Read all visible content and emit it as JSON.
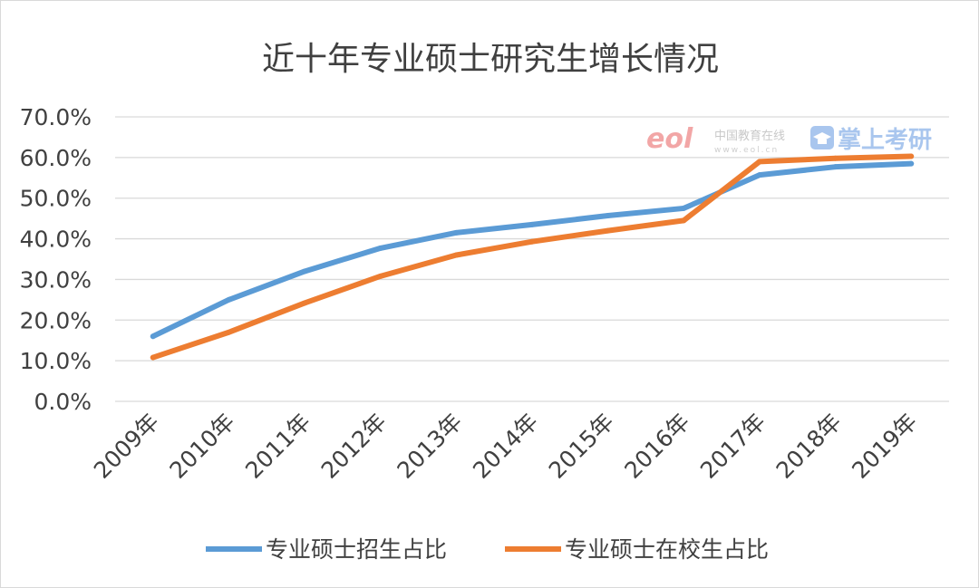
{
  "chart_data": {
    "type": "line",
    "title": "近十年专业硕士研究生增长情况",
    "categories": [
      "2009年",
      "2010年",
      "2011年",
      "2012年",
      "2013年",
      "2014年",
      "2015年",
      "2016年",
      "2017年",
      "2018年",
      "2019年"
    ],
    "ylim": [
      0,
      70
    ],
    "yticks": [
      "0.0%",
      "10.0%",
      "20.0%",
      "30.0%",
      "40.0%",
      "50.0%",
      "60.0%",
      "70.0%"
    ],
    "grid": true,
    "legend": "bottom",
    "series": [
      {
        "name": "专业硕士招生占比",
        "color": "#5b9bd5",
        "values": [
          16.0,
          25.0,
          32.0,
          37.7,
          41.5,
          43.5,
          45.7,
          47.5,
          55.7,
          57.7,
          58.5
        ]
      },
      {
        "name": "专业硕士在校生占比",
        "color": "#ed7d31",
        "values": [
          10.8,
          17.0,
          24.2,
          30.8,
          36.0,
          39.3,
          42.0,
          44.5,
          59.0,
          59.8,
          60.3
        ]
      }
    ]
  },
  "watermark": {
    "eol_logo": "eol",
    "site_name": "中国教育在线",
    "site_url": "www.eol.cn",
    "brand": "掌上考研"
  }
}
